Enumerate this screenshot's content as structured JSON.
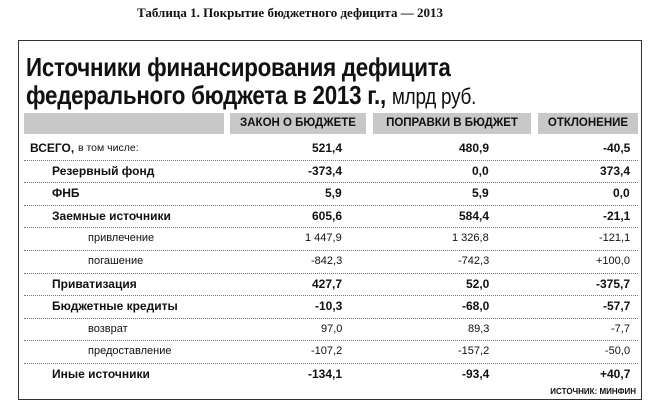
{
  "caption": "Таблица 1. Покрытие бюджетного дефицита — 2013",
  "title": [
    "Источники финансирования дефицита",
    "федерального бюджета в 2013 г.,"
  ],
  "unit": "млрд руб.",
  "columns": [
    "ЗАКОН О БЮДЖЕТЕ",
    "ПОПРАВКИ В БЮДЖЕТ",
    "ОТКЛОНЕНИЕ"
  ],
  "total": {
    "label": "ВСЕГО,",
    "note": "в том числе:",
    "values": [
      "521,4",
      "480,9",
      "-40,5"
    ]
  },
  "rows": [
    {
      "label": "Резервный фонд",
      "values": [
        "-373,4",
        "0,0",
        "373,4"
      ]
    },
    {
      "label": "ФНБ",
      "values": [
        "5,9",
        "5,9",
        "0,0"
      ]
    },
    {
      "label": "Заемные источники",
      "values": [
        "605,6",
        "584,4",
        "-21,1"
      ],
      "items": [
        {
          "label": "привлечение",
          "values": [
            "1 447,9",
            "1 326,8",
            "-121,1"
          ]
        },
        {
          "label": "погашение",
          "values": [
            "-842,3",
            "-742,3",
            "+100,0"
          ]
        }
      ]
    },
    {
      "label": "Приватизация",
      "values": [
        "427,7",
        "52,0",
        "-375,7"
      ]
    },
    {
      "label": "Бюджетные кредиты",
      "values": [
        "-10,3",
        "-68,0",
        "-57,7"
      ],
      "items": [
        {
          "label": "возврат",
          "values": [
            "97,0",
            "89,3",
            "-7,7"
          ]
        },
        {
          "label": "предоставление",
          "values": [
            "-107,2",
            "-157,2",
            "-50,0"
          ]
        }
      ]
    },
    {
      "label": "Иные источники",
      "values": [
        "-134,1",
        "-93,4",
        "+40,7"
      ]
    }
  ],
  "source": "ИСТОЧНИК: МИНФИН"
}
